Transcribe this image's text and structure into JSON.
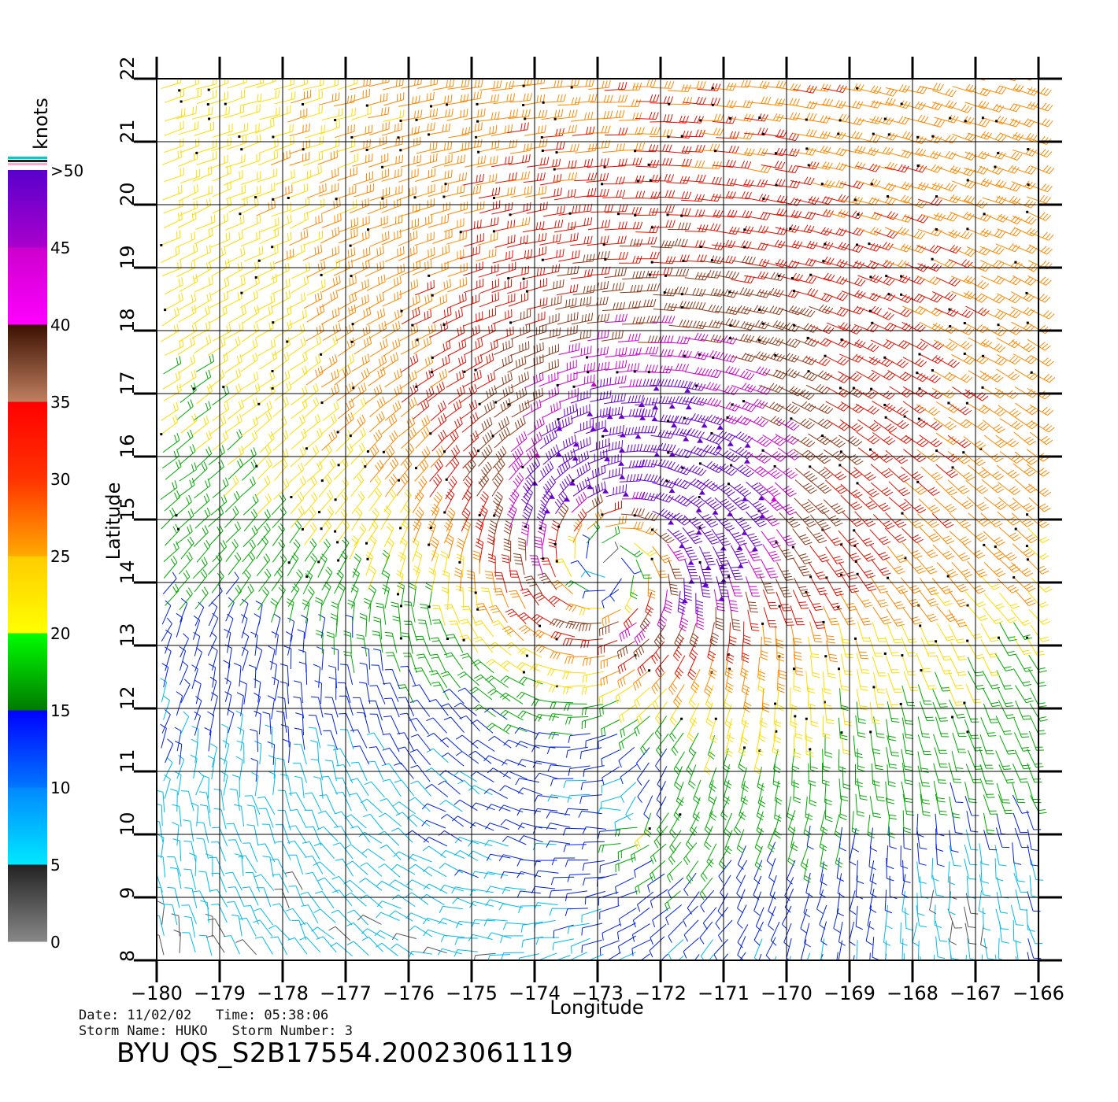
{
  "figure": {
    "xlabel": "Longitude",
    "ylabel": "Latitude",
    "x_ticks": [
      "-180",
      "-179",
      "-178",
      "-177",
      "-176",
      "-175",
      "-174",
      "-173",
      "-172",
      "-171",
      "-170",
      "-169",
      "-168",
      "-167",
      "-166"
    ],
    "y_ticks": [
      "8",
      "9",
      "10",
      "11",
      "12",
      "13",
      "14",
      "15",
      "16",
      "17",
      "18",
      "19",
      "20",
      "21",
      "22"
    ],
    "lon_range": [
      -180,
      -166
    ],
    "lat_range": [
      8,
      22
    ]
  },
  "legend": {
    "units": "knots",
    "labels": [
      ">50",
      "45",
      "40",
      "35",
      "30",
      "25",
      "20",
      "15",
      "10",
      "5",
      "0"
    ],
    "bands": [
      {
        "from": 0,
        "to": 5,
        "colors": [
          "#888888",
          "#222222"
        ]
      },
      {
        "from": 5,
        "to": 10,
        "colors": [
          "#00e8ff",
          "#0088ff"
        ]
      },
      {
        "from": 10,
        "to": 15,
        "colors": [
          "#0077ff",
          "#0000ff"
        ]
      },
      {
        "from": 15,
        "to": 20,
        "colors": [
          "#007a00",
          "#00ff00"
        ]
      },
      {
        "from": 20,
        "to": 25,
        "colors": [
          "#ffff00",
          "#ffcc00"
        ]
      },
      {
        "from": 25,
        "to": 30,
        "colors": [
          "#ffaa00",
          "#ff3300"
        ]
      },
      {
        "from": 30,
        "to": 35,
        "colors": [
          "#ff3300",
          "#ff0000"
        ]
      },
      {
        "from": 35,
        "to": 40,
        "colors": [
          "#c08060",
          "#3a1000"
        ]
      },
      {
        "from": 40,
        "to": 45,
        "colors": [
          "#ff00ff",
          "#cc00cc"
        ]
      },
      {
        "from": 45,
        "to": 50,
        "colors": [
          "#aa00cc",
          "#5a00cc"
        ]
      }
    ]
  },
  "wind_field": {
    "center_lon": -172.7,
    "center_lat": 14.6,
    "peak_speed_kt": 50,
    "rotation": "counter-clockwise",
    "grid_step_deg": 0.25
  },
  "footer": {
    "date_line": "Date: 11/02/02   Time: 05:38:06",
    "storm_line": "Storm Name: HUKO   Storm Number: 3",
    "file_id": "BYU QS_S2B17554.20023061119"
  }
}
